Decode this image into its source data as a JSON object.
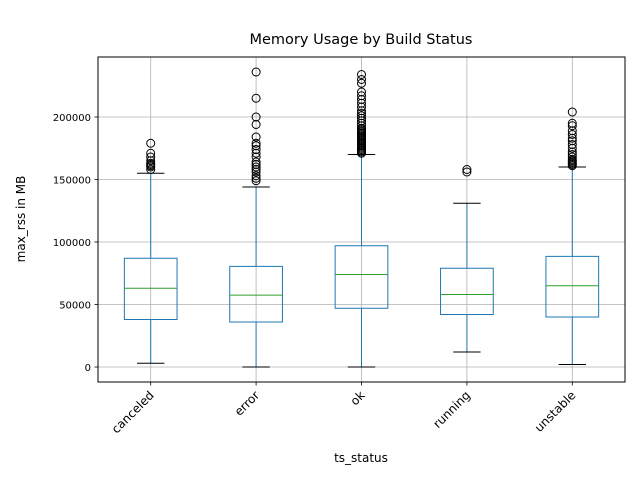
{
  "chart_data": {
    "type": "box",
    "title": "Memory Usage by Build Status",
    "xlabel": "ts_status",
    "ylabel": "max_rss in MB",
    "ylim": [
      -12000,
      248000
    ],
    "yticks": [
      0,
      50000,
      100000,
      150000,
      200000
    ],
    "ytick_labels": [
      "0",
      "50000",
      "100000",
      "150000",
      "200000"
    ],
    "grid": true,
    "categories": [
      "canceled",
      "error",
      "ok",
      "running",
      "unstable"
    ],
    "boxes": [
      {
        "category": "canceled",
        "whisker_low": 3000,
        "q1": 38000,
        "median": 63000,
        "q3": 87000,
        "whisker_high": 155000,
        "outliers": [
          158000,
          160000,
          161000,
          162000,
          163000,
          165000,
          168000,
          171000,
          179000
        ]
      },
      {
        "category": "error",
        "whisker_low": 0,
        "q1": 36000,
        "median": 57500,
        "q3": 80500,
        "whisker_high": 144000,
        "outliers": [
          149000,
          151000,
          153000,
          156000,
          158000,
          160000,
          162000,
          164000,
          168000,
          171000,
          174000,
          177000,
          179000,
          184000,
          194000,
          200000,
          215000,
          236000
        ]
      },
      {
        "category": "ok",
        "whisker_low": 0,
        "q1": 47000,
        "median": 74000,
        "q3": 97000,
        "whisker_high": 170000,
        "outliers": [
          171000,
          172000,
          173000,
          174000,
          175000,
          176000,
          177000,
          178000,
          179000,
          180000,
          181000,
          182000,
          183000,
          184000,
          185000,
          186000,
          187000,
          188000,
          189000,
          190000,
          191000,
          193000,
          195000,
          197000,
          199000,
          201000,
          203000,
          205000,
          208000,
          211000,
          214000,
          217000,
          220000,
          227000,
          230000,
          234000
        ]
      },
      {
        "category": "running",
        "whisker_low": 12000,
        "q1": 42000,
        "median": 58000,
        "q3": 79000,
        "whisker_high": 131000,
        "outliers": [
          156000,
          158000
        ]
      },
      {
        "category": "unstable",
        "whisker_low": 2000,
        "q1": 40000,
        "median": 65000,
        "q3": 88500,
        "whisker_high": 160000,
        "outliers": [
          161000,
          162000,
          163000,
          164000,
          165000,
          166000,
          168000,
          170000,
          172000,
          175000,
          178000,
          181000,
          183000,
          186000,
          189000,
          193000,
          195000,
          204000
        ]
      }
    ],
    "colors": {
      "box": "#1f77b4",
      "median": "#2ca02c",
      "whisker": "#1f77b4",
      "cap": "#000000",
      "grid": "#b0b0b0"
    }
  }
}
